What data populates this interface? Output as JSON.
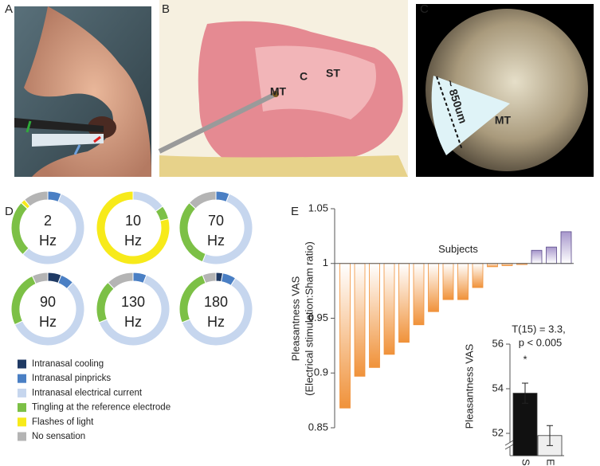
{
  "panels": [
    "A",
    "B",
    "C",
    "D",
    "E"
  ],
  "photo_labels": {
    "B": [
      "C",
      "ST",
      "MT"
    ],
    "C": [
      "~ 850um",
      "MT"
    ]
  },
  "chart_data": [
    {
      "type": "donut",
      "categories": [
        "Intranasal cooling",
        "Intranasal pinpricks",
        "Intranasal electrical current",
        "Tingling at the reference electrode",
        "Flashes of light",
        "No sensation"
      ],
      "colors": [
        "#1f3a64",
        "#4a7fc4",
        "#c6d6ee",
        "#7cc046",
        "#f7ea1a",
        "#b4b4b4"
      ],
      "rings": [
        {
          "label": "2",
          "unit": "Hz",
          "values": [
            0,
            6,
            56,
            25,
            2,
            11
          ]
        },
        {
          "label": "10",
          "unit": "Hz",
          "values": [
            0,
            0,
            15,
            6,
            79,
            0
          ]
        },
        {
          "label": "70",
          "unit": "Hz",
          "values": [
            0,
            6,
            50,
            31,
            0,
            13
          ]
        },
        {
          "label": "90",
          "unit": "Hz",
          "values": [
            6,
            6,
            56,
            25,
            0,
            7
          ]
        },
        {
          "label": "130",
          "unit": "Hz",
          "values": [
            0,
            6,
            63,
            19,
            0,
            12
          ]
        },
        {
          "label": "180",
          "unit": "Hz",
          "values": [
            3,
            6,
            60,
            25,
            0,
            6
          ]
        }
      ]
    },
    {
      "type": "bar",
      "ylabel": [
        "Pleasantness VAS",
        "(Electrical stimulation:Sham ratio)"
      ],
      "annotation": "Subjects",
      "values": [
        0.868,
        0.897,
        0.905,
        0.917,
        0.928,
        0.944,
        0.956,
        0.967,
        0.967,
        0.978,
        0.997,
        0.998,
        0.999,
        1.012,
        1.015,
        1.029
      ],
      "baseline": 1,
      "color_below": "#f0923a",
      "color_above": "#a797cc",
      "ylim": [
        0.85,
        1.05
      ],
      "yticks": [
        0.85,
        0.9,
        0.95,
        1,
        1.05
      ]
    },
    {
      "type": "bar",
      "ylabel": "Pleasantness VAS",
      "categories": [
        "Sham",
        "ES"
      ],
      "values": [
        53.8,
        51.9
      ],
      "errors": [
        0.45,
        0.45
      ],
      "colors": [
        "#111111",
        "#efefef"
      ],
      "ylim": [
        51,
        56
      ],
      "yticks": [
        52,
        54,
        56
      ],
      "annotations": [
        "T(15) = 3.3,",
        "p < 0.005"
      ],
      "significance": "*",
      "axis_break": true
    }
  ]
}
